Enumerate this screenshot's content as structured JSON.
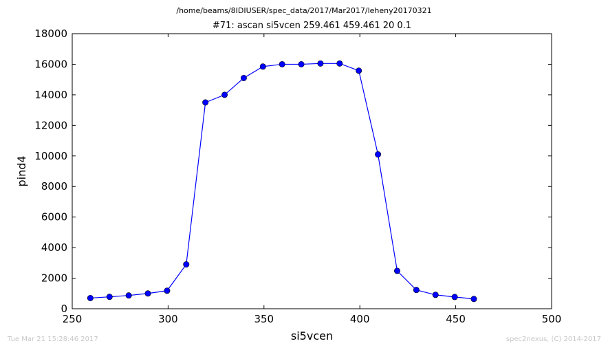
{
  "header": {
    "file_path": "/home/beams/8IDIUSER/spec_data/2017/Mar2017/leheny20170321",
    "scan_title": "#71: ascan  si5vcen 259.461 459.461  20 0.1"
  },
  "footer": {
    "timestamp": "Tue Mar 21 15:28:46 2017",
    "credit": "spec2nexus, (C) 2014-2017"
  },
  "chart_data": {
    "type": "line",
    "title": "#71: ascan  si5vcen 259.461 459.461  20 0.1",
    "xlabel": "si5vcen",
    "ylabel": "pind4",
    "xlim": [
      250,
      500
    ],
    "ylim": [
      0,
      18000
    ],
    "xticks": [
      "250",
      "300",
      "350",
      "400",
      "450",
      "500"
    ],
    "yticks": [
      "0",
      "2000",
      "4000",
      "6000",
      "8000",
      "10000",
      "12000",
      "14000",
      "16000",
      "18000"
    ],
    "grid": false,
    "series": [
      {
        "color": "#0000ff",
        "marker": "circle",
        "x": [
          259.461,
          269.461,
          279.461,
          289.461,
          299.461,
          309.461,
          319.461,
          329.461,
          339.461,
          349.461,
          359.461,
          369.461,
          379.461,
          389.461,
          399.461,
          409.461,
          419.461,
          429.461,
          439.461,
          449.461,
          459.461
        ],
        "y": [
          700,
          780,
          870,
          1000,
          1180,
          2900,
          13500,
          14000,
          15100,
          15850,
          16000,
          16000,
          16050,
          16050,
          15580,
          10100,
          2480,
          1230,
          910,
          770,
          640
        ]
      }
    ]
  }
}
